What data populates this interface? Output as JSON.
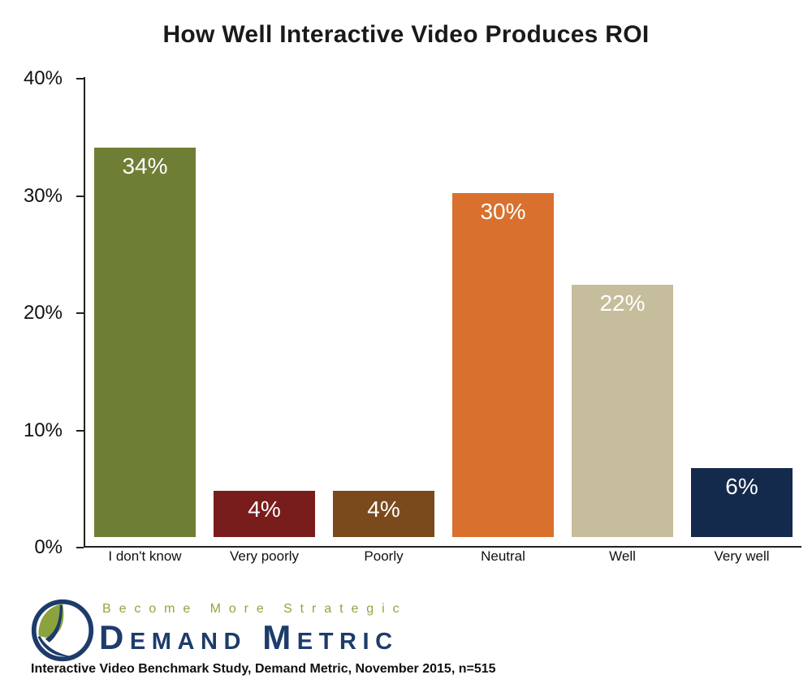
{
  "chart_data": {
    "type": "bar",
    "title": "How Well Interactive Video Produces ROI",
    "categories": [
      "I don't know",
      "Very poorly",
      "Poorly",
      "Neutral",
      "Well",
      "Very well"
    ],
    "values": [
      34,
      4,
      4,
      30,
      22,
      6
    ],
    "value_labels": [
      "34%",
      "4%",
      "4%",
      "30%",
      "22%",
      "6%"
    ],
    "bar_colors": [
      "#6e7e34",
      "#791c1c",
      "#7a4a1d",
      "#d9702e",
      "#c6bd9d",
      "#132a4c"
    ],
    "ylim": [
      0,
      40
    ],
    "yticks": [
      "40%",
      "30%",
      "20%",
      "10%",
      "0%"
    ],
    "grid": false,
    "legend_position": "none",
    "xlabel": "",
    "ylabel": ""
  },
  "footer": {
    "tagline": "Become More Strategic",
    "brand": "Demand Metric",
    "source": "Interactive Video Benchmark Study, Demand Metric, November 2015, n=515"
  },
  "colors": {
    "brand_navy": "#1d3c6b",
    "brand_green": "#8ca23d",
    "axis": "#222222",
    "value_label_text": "#ffffff"
  }
}
